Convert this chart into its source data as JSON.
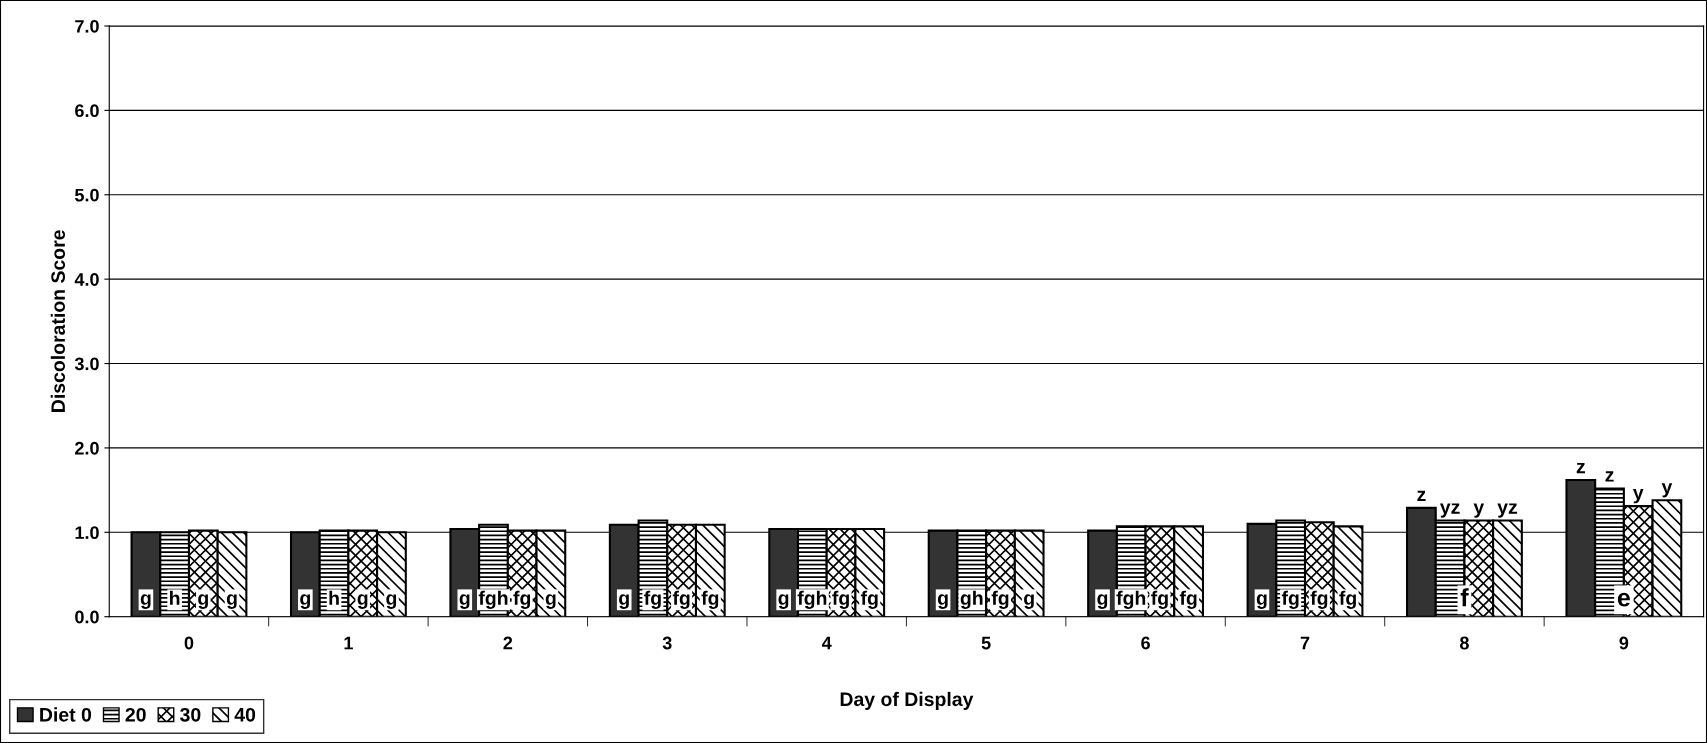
{
  "chart_data": {
    "type": "bar",
    "xlabel": "Day of Display",
    "ylabel": "Discoloration Score",
    "categories": [
      "0",
      "1",
      "2",
      "3",
      "4",
      "5",
      "6",
      "7",
      "8",
      "9"
    ],
    "series": [
      {
        "name": "Diet 0",
        "color": "#333333",
        "values": [
          1.0,
          1.0,
          1.04,
          1.09,
          1.04,
          1.02,
          1.02,
          1.1,
          1.29,
          1.62
        ],
        "value_labels": [
          null,
          null,
          null,
          null,
          null,
          null,
          null,
          null,
          "z",
          "z"
        ]
      },
      {
        "name": "20",
        "color": "#ffffff",
        "values": [
          1.0,
          1.02,
          1.09,
          1.14,
          1.04,
          1.02,
          1.07,
          1.14,
          1.14,
          1.52
        ],
        "value_labels": [
          null,
          null,
          null,
          null,
          null,
          null,
          null,
          null,
          "yz",
          "z"
        ]
      },
      {
        "name": "30",
        "color": "#ffffff",
        "values": [
          1.02,
          1.02,
          1.02,
          1.09,
          1.04,
          1.02,
          1.07,
          1.12,
          1.14,
          1.31
        ],
        "value_labels": [
          null,
          null,
          null,
          null,
          null,
          null,
          null,
          null,
          "y",
          "y"
        ]
      },
      {
        "name": "40",
        "color": "#ffffff",
        "values": [
          1.0,
          1.0,
          1.02,
          1.09,
          1.04,
          1.02,
          1.07,
          1.07,
          1.14,
          1.38
        ],
        "value_labels": [
          null,
          null,
          null,
          null,
          null,
          null,
          null,
          null,
          "yz",
          "y"
        ]
      }
    ],
    "ylim": [
      0,
      7
    ],
    "yticks": [
      {
        "value": 0,
        "label": "0.0"
      },
      {
        "value": 1,
        "label": "1.0"
      },
      {
        "value": 2,
        "label": "2.0"
      },
      {
        "value": 3,
        "label": "3.0"
      },
      {
        "value": 4,
        "label": "4.0"
      },
      {
        "value": 5,
        "label": "5.0"
      },
      {
        "value": 6,
        "label": "6.0"
      },
      {
        "value": 7,
        "label": "7.0"
      }
    ],
    "grid": "y",
    "legend": "bottom left",
    "annotations": [
      {
        "text": "g h g g",
        "x": "0",
        "y": 0.2
      },
      {
        "text": "g h g g",
        "x": "1",
        "y": 0.2
      },
      {
        "text": "g fgh fg g",
        "x": "2",
        "y": 0.2
      },
      {
        "text": "g fg fg fg",
        "x": "3",
        "y": 0.2
      },
      {
        "text": "g fgh fg fg",
        "x": "4",
        "y": 0.2
      },
      {
        "text": "g gh fg g",
        "x": "5",
        "y": 0.2
      },
      {
        "text": "g fgh fg fg",
        "x": "6",
        "y": 0.2
      },
      {
        "text": "g fg fg fg",
        "x": "7",
        "y": 0.2
      },
      {
        "text": "f",
        "x": "8",
        "y": 0.2
      },
      {
        "text": "e",
        "x": "9",
        "y": 0.2
      }
    ]
  }
}
